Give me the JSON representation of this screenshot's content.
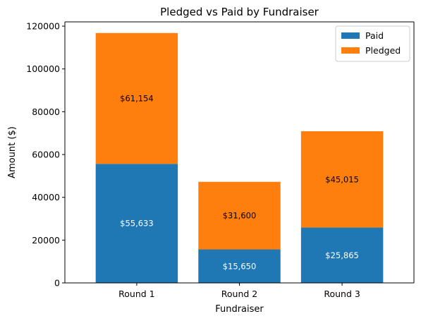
{
  "chart_data": {
    "type": "bar",
    "stacked": true,
    "title": "Pledged vs Paid by Fundraiser",
    "xlabel": "Fundraiser",
    "ylabel": "Amount ($)",
    "categories": [
      "Round 1",
      "Round 2",
      "Round 3"
    ],
    "ylim": [
      0,
      122000
    ],
    "yticks": [
      0,
      20000,
      40000,
      60000,
      80000,
      100000,
      120000
    ],
    "legend": "top-right",
    "grid": false,
    "series": [
      {
        "name": "Paid",
        "color": "#1f77b4",
        "label_color": "#ffffff",
        "values": [
          55633,
          15650,
          25865
        ],
        "labels": [
          "$55,633",
          "$15,650",
          "$25,865"
        ]
      },
      {
        "name": "Pledged",
        "color": "#ff7f0e",
        "label_color": "#000000",
        "values": [
          61154,
          31600,
          45015
        ],
        "labels": [
          "$61,154",
          "$31,600",
          "$45,015"
        ]
      }
    ]
  }
}
